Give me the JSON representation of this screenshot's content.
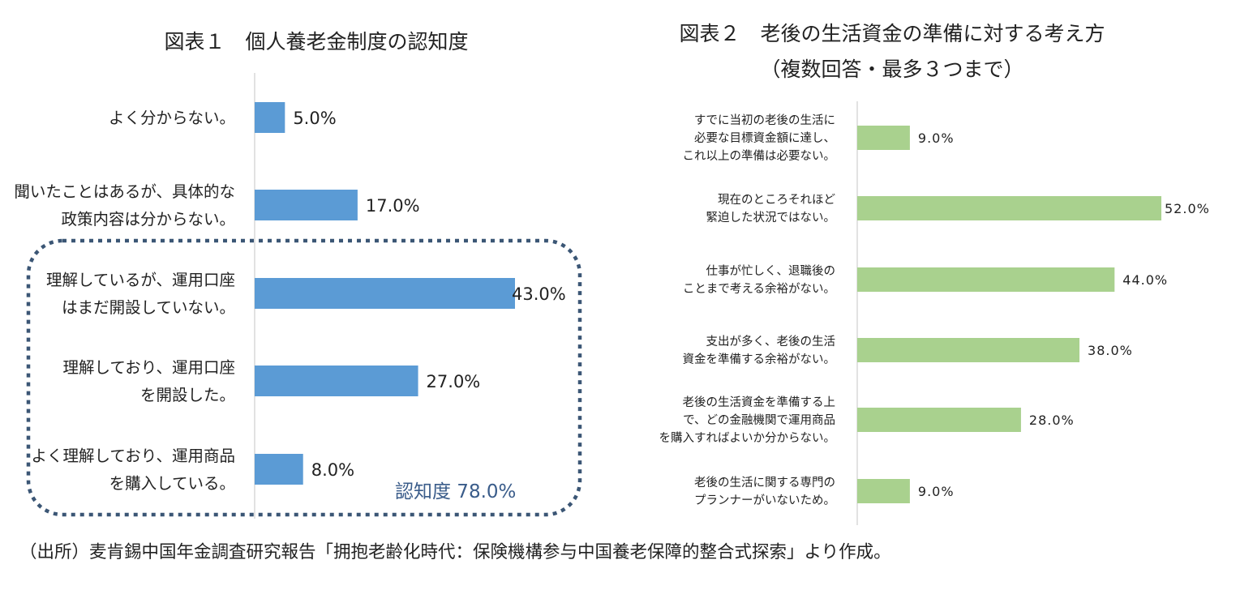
{
  "charts": {
    "fig1": {
      "title": "図表１　個人養老金制度の認知度",
      "annotation": "認知度 78.0%",
      "color": "#5b9bd5"
    },
    "fig2": {
      "title_line1": "図表２　老後の生活資金の準備に対する考え方",
      "title_line2": "（複数回答・最多３つまで）",
      "color": "#a9d18e"
    }
  },
  "chart_data": [
    {
      "type": "bar",
      "orientation": "horizontal",
      "title": "図表１　個人養老金制度の認知度",
      "categories": [
        [
          "よく分からない。"
        ],
        [
          "聞いたことはあるが、具体的な",
          "政策内容は分からない。"
        ],
        [
          "理解しているが、運用口座",
          "はまだ開設していない。"
        ],
        [
          "理解しており、運用口座",
          "を開設した。"
        ],
        [
          "よく理解しており、運用商品",
          "を購入している。"
        ]
      ],
      "values": [
        5.0,
        17.0,
        43.0,
        27.0,
        8.0
      ],
      "value_labels": [
        "5.0%",
        "17.0%",
        "43.0%",
        "27.0%",
        "8.0%"
      ],
      "unit": "%",
      "xlim": [
        0,
        45
      ],
      "grid": false,
      "legend": "none",
      "annotation": "認知度 78.0%"
    },
    {
      "type": "bar",
      "orientation": "horizontal",
      "title": "図表２　老後の生活資金の準備に対する考え方（複数回答・最多３つまで）",
      "categories": [
        [
          "すでに当初の老後の生活に",
          "必要な目標資金額に達し、",
          "これ以上の準備は必要ない。"
        ],
        [
          "現在のところそれほど",
          "緊迫した状況ではない。"
        ],
        [
          "仕事が忙しく、退職後の",
          "ことまで考える余裕がない。"
        ],
        [
          "支出が多く、老後の生活",
          "資金を準備する余裕がない。"
        ],
        [
          "老後の生活資金を準備する上",
          "で、どの金融機関で運用商品",
          "を購入すればよいか分からない。"
        ],
        [
          "老後の生活に関する専門の",
          "プランナーがいないため。"
        ]
      ],
      "values": [
        9.0,
        52.0,
        44.0,
        38.0,
        28.0,
        9.0
      ],
      "value_labels": [
        "9.0%",
        "52.0%",
        "44.0%",
        "38.0%",
        "28.0%",
        "9.0%"
      ],
      "unit": "%",
      "xlim": [
        0,
        54
      ],
      "grid": false,
      "legend": "none"
    }
  ],
  "source_note": "（出所）麦肯錫中国年金調査研究報告「拥抱老齢化時代：保険機構参与中国養老保障的整合式探索」より作成。"
}
